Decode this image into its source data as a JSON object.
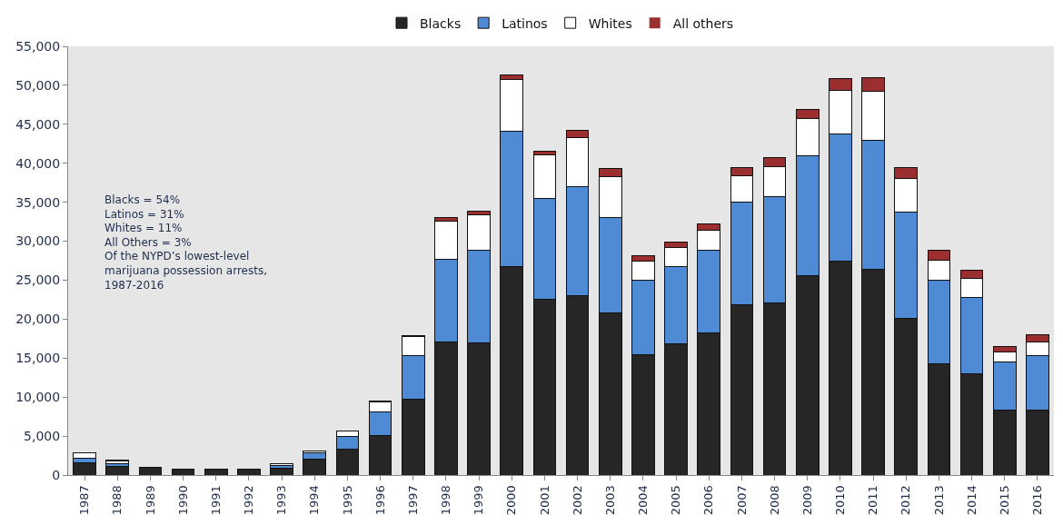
{
  "chart_data": {
    "type": "bar",
    "stacked": true,
    "categories": [
      "1987",
      "1988",
      "1989",
      "1990",
      "1991",
      "1992",
      "1993",
      "1994",
      "1995",
      "1996",
      "1997",
      "1998",
      "1999",
      "2000",
      "2001",
      "2002",
      "2003",
      "2004",
      "2005",
      "2006",
      "2007",
      "2008",
      "2009",
      "2010",
      "2011",
      "2012",
      "2013",
      "2014",
      "2015",
      "2016"
    ],
    "series": [
      {
        "name": "Blacks",
        "color": "#262626",
        "values": [
          1600,
          1100,
          1000,
          800,
          700,
          700,
          900,
          2000,
          3300,
          5100,
          9700,
          17100,
          17000,
          26800,
          22600,
          23000,
          20800,
          15400,
          16800,
          18200,
          21800,
          22100,
          25600,
          27400,
          26400,
          20100,
          14300,
          13000,
          8300,
          8300
        ]
      },
      {
        "name": "Latinos",
        "color": "#4f8bd5",
        "values": [
          600,
          300,
          0,
          0,
          0,
          0,
          300,
          800,
          1700,
          3000,
          5600,
          10600,
          11800,
          17300,
          12900,
          14000,
          12200,
          9600,
          10000,
          10600,
          13200,
          13600,
          15400,
          16300,
          16500,
          13600,
          10700,
          9800,
          6200,
          7000
        ]
      },
      {
        "name": "Whites",
        "color": "#ffffff",
        "values": [
          600,
          400,
          0,
          0,
          0,
          0,
          300,
          300,
          600,
          1300,
          2500,
          4900,
          4600,
          6600,
          5600,
          6300,
          5300,
          2500,
          2400,
          2600,
          3400,
          3900,
          4700,
          5600,
          6300,
          4400,
          2600,
          2400,
          1300,
          1800
        ]
      },
      {
        "name": "All others",
        "color": "#9b2f2f",
        "values": [
          0,
          100,
          0,
          0,
          0,
          0,
          0,
          null,
          100,
          100,
          100,
          400,
          500,
          600,
          500,
          900,
          1000,
          600,
          700,
          800,
          1000,
          1100,
          1200,
          1600,
          1800,
          1400,
          1200,
          1100,
          700,
          900
        ]
      }
    ],
    "ylim": [
      0,
      55000
    ],
    "yticks": [
      {
        "value": 0,
        "label": "0"
      },
      {
        "value": 5000,
        "label": "5,000"
      },
      {
        "value": 10000,
        "label": "10,000"
      },
      {
        "value": 15000,
        "label": "15,000"
      },
      {
        "value": 20000,
        "label": "20,000"
      },
      {
        "value": 25000,
        "label": "25,000"
      },
      {
        "value": 30000,
        "label": "30,000"
      },
      {
        "value": 35000,
        "label": "35,000"
      },
      {
        "value": 40000,
        "label": "40,000"
      },
      {
        "value": 45000,
        "label": "45,000"
      },
      {
        "value": 50000,
        "label": "50,000"
      },
      {
        "value": 55000,
        "label": "55,000"
      }
    ],
    "grid": false,
    "legend": "top",
    "annotations": [
      "Blacks = 54%\nLatinos = 31%\nWhites = 11%\nAll Others = 3%\nOf the NYPD’s lowest-level\nmarijuana possession arrests,\n1987-2016"
    ]
  }
}
